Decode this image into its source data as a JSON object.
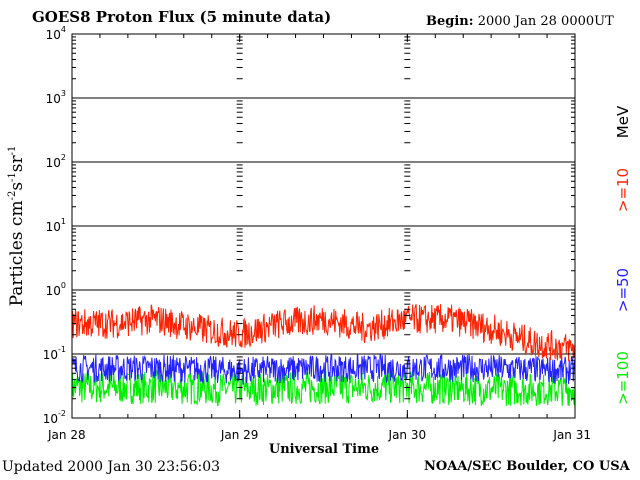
{
  "title": "GOES8 Proton Flux (5 minute data)",
  "begin_label": "Begin:",
  "begin_value": "2000 Jan 28 0000UT",
  "updated_label": "Updated",
  "updated_value": "2000 Jan 30 23:56:03",
  "credit": "NOAA/SEC Boulder, CO USA",
  "chart_data": {
    "type": "line",
    "title": "GOES8 Proton Flux (5 minute data)",
    "xlabel": "Universal Time",
    "ylabel": "Particles cm⁻²s⁻¹sr⁻¹",
    "y_scale": "log",
    "ylim": [
      0.01,
      10000
    ],
    "y_ticks": [
      {
        "base": "10",
        "exp": "-2",
        "value": 0.01
      },
      {
        "base": "10",
        "exp": "-1",
        "value": 0.1
      },
      {
        "base": "10",
        "exp": "0",
        "value": 1
      },
      {
        "base": "10",
        "exp": "1",
        "value": 10
      },
      {
        "base": "10",
        "exp": "2",
        "value": 100
      },
      {
        "base": "10",
        "exp": "3",
        "value": 1000
      },
      {
        "base": "10",
        "exp": "4",
        "value": 10000
      }
    ],
    "x_ticks": [
      "Jan 28",
      "Jan 29",
      "Jan 30",
      "Jan 31"
    ],
    "xlim_days": [
      0,
      3
    ],
    "units_label": "MeV",
    "series": [
      {
        "name": ">=10",
        "color": "#ff2200",
        "points": [
          [
            0,
            0.3
          ],
          [
            0.25,
            0.3
          ],
          [
            0.5,
            0.35
          ],
          [
            0.75,
            0.25
          ],
          [
            1.0,
            0.2
          ],
          [
            1.25,
            0.3
          ],
          [
            1.5,
            0.35
          ],
          [
            1.75,
            0.25
          ],
          [
            2.0,
            0.35
          ],
          [
            2.25,
            0.35
          ],
          [
            2.5,
            0.25
          ],
          [
            2.75,
            0.15
          ],
          [
            3.0,
            0.12
          ]
        ]
      },
      {
        "name": ">=50",
        "color": "#2222ff",
        "points": [
          [
            0,
            0.06
          ],
          [
            0.5,
            0.06
          ],
          [
            1.0,
            0.055
          ],
          [
            1.5,
            0.06
          ],
          [
            2.0,
            0.06
          ],
          [
            2.5,
            0.06
          ],
          [
            3.0,
            0.055
          ]
        ]
      },
      {
        "name": ">=100",
        "color": "#00ee00",
        "points": [
          [
            0,
            0.03
          ],
          [
            0.5,
            0.03
          ],
          [
            1.0,
            0.028
          ],
          [
            1.5,
            0.03
          ],
          [
            2.0,
            0.03
          ],
          [
            2.5,
            0.028
          ],
          [
            3.0,
            0.028
          ]
        ]
      }
    ]
  }
}
